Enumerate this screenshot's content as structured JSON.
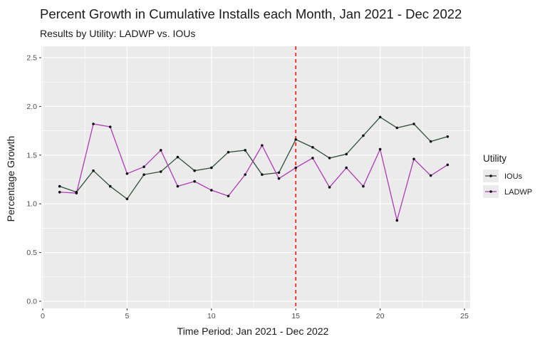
{
  "chart_data": {
    "type": "line",
    "title": "Percent Growth in Cumulative Installs each Month, Jan 2021 - Dec 2022",
    "subtitle": "Results by Utility: LADWP vs. IOUs",
    "xlabel": "Time Period: Jan 2021 - Dec 2022",
    "ylabel": "Percentage Growth",
    "xlim": [
      0,
      25
    ],
    "ylim": [
      0,
      2.5
    ],
    "x_ticks": [
      0,
      5,
      10,
      15,
      20,
      25
    ],
    "y_ticks": [
      "0.0",
      "0.5",
      "1.0",
      "1.5",
      "2.0",
      "2.5"
    ],
    "x_tick_labels": [
      "0",
      "5",
      "10",
      "15",
      "20",
      "25"
    ],
    "grid": true,
    "legend_placement": "right",
    "legend_title": "Utility",
    "x": [
      1,
      2,
      3,
      4,
      5,
      6,
      7,
      8,
      9,
      10,
      11,
      12,
      13,
      14,
      15,
      16,
      17,
      18,
      19,
      20,
      21,
      22,
      23,
      24
    ],
    "series": [
      {
        "name": "IOUs",
        "color": "#2f4f3a",
        "values": [
          1.18,
          1.12,
          1.34,
          1.18,
          1.05,
          1.3,
          1.33,
          1.48,
          1.34,
          1.37,
          1.53,
          1.55,
          1.3,
          1.32,
          1.66,
          1.58,
          1.47,
          1.51,
          1.7,
          1.89,
          1.78,
          1.82,
          1.64,
          1.69
        ]
      },
      {
        "name": "LADWP",
        "color": "#b03ab8",
        "values": [
          1.12,
          1.11,
          1.82,
          1.79,
          1.31,
          1.38,
          1.55,
          1.18,
          1.23,
          1.14,
          1.08,
          1.3,
          1.6,
          1.26,
          1.37,
          1.47,
          1.17,
          1.37,
          1.18,
          1.56,
          0.83,
          1.46,
          1.29,
          1.4
        ]
      }
    ],
    "annotations": [
      {
        "type": "vline",
        "x": 15,
        "color": "#ff0000",
        "style": "dashed"
      }
    ],
    "colors": {
      "panel_background": "#ebebeb",
      "gridline": "#ffffff"
    }
  }
}
